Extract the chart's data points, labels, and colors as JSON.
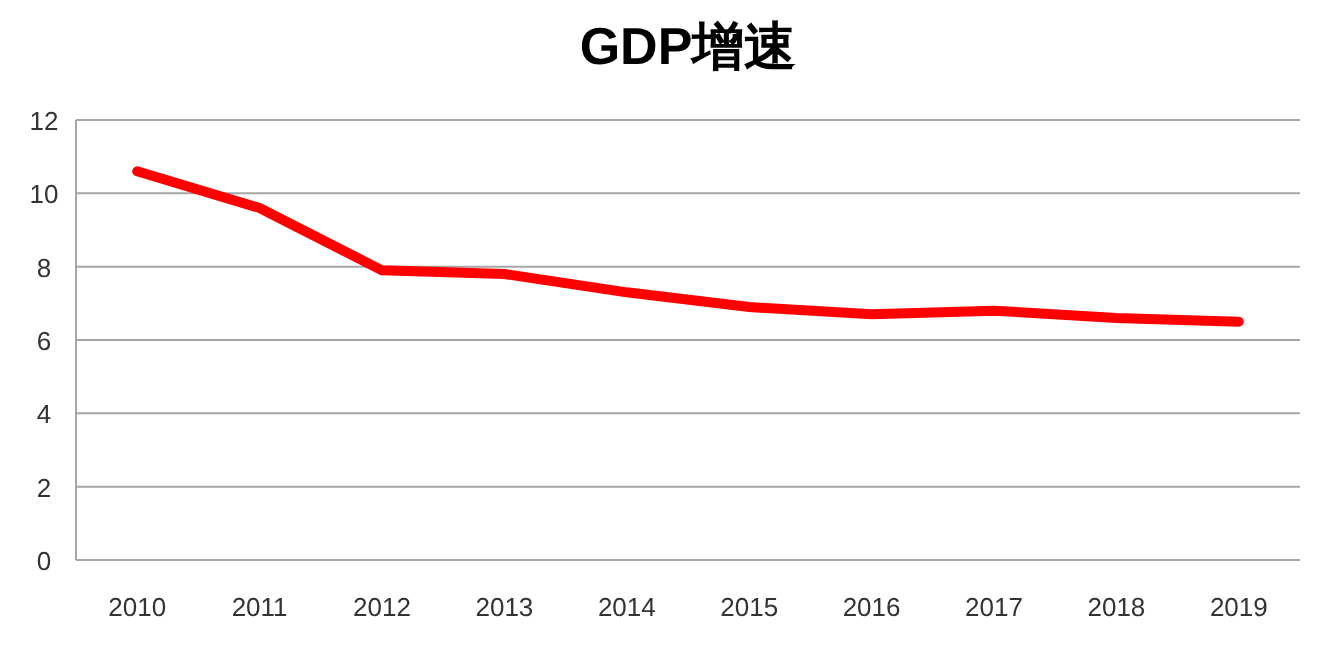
{
  "chart_data": {
    "type": "line",
    "title": "GDP增速",
    "categories": [
      "2010",
      "2011",
      "2012",
      "2013",
      "2014",
      "2015",
      "2016",
      "2017",
      "2018",
      "2019"
    ],
    "series": [
      {
        "color": "#ff0000",
        "values": [
          10.6,
          9.6,
          7.9,
          7.8,
          7.3,
          6.9,
          6.7,
          6.8,
          6.6,
          6.5
        ]
      }
    ],
    "ylim": [
      0,
      12
    ],
    "yticks": [
      0,
      2,
      4,
      6,
      8,
      10,
      12
    ],
    "grid": "y",
    "marker": "none",
    "line_style": "solid"
  }
}
